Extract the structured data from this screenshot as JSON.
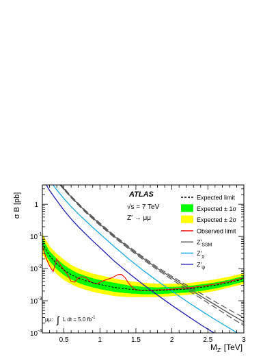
{
  "chart_data": {
    "type": "line",
    "title": "",
    "experiment": "ATLAS",
    "energy": "√s = 7 TeV",
    "process": "Z′ → μμ",
    "xlabel_main": "M",
    "xlabel_sub": "Z′",
    "xlabel_unit": "[TeV]",
    "ylabel": "σ B [pb]",
    "lumi_prefix": "μμ:",
    "lumi_text": "L dt = 5.0 fb",
    "lumi_exp": "-1",
    "xlim": [
      0.2,
      3.0
    ],
    "ylim_log10": [
      -4,
      0.6
    ],
    "yscale": "log",
    "x_ticks": [
      0.5,
      1,
      1.5,
      2,
      2.5,
      3
    ],
    "x_tick_labels": [
      "0.5",
      "1",
      "1.5",
      "2",
      "2.5",
      "3"
    ],
    "y_ticks": [
      {
        "exp": -4,
        "label": "10",
        "sup": "-4"
      },
      {
        "exp": -3,
        "label": "10",
        "sup": "-3"
      },
      {
        "exp": -2,
        "label": "10",
        "sup": "-2"
      },
      {
        "exp": -1,
        "label": "10",
        "sup": "-1"
      },
      {
        "exp": 0,
        "label": "1",
        "sup": ""
      }
    ],
    "legend": [
      {
        "key": "expected",
        "label": "Expected limit",
        "sub": "",
        "style": "dashed",
        "color": "#000000"
      },
      {
        "key": "band1",
        "label": "Expected ± 1σ",
        "sub": "",
        "style": "box",
        "color": "#00ff00"
      },
      {
        "key": "band2",
        "label": "Expected ± 2σ",
        "sub": "",
        "style": "box",
        "color": "#ffff00"
      },
      {
        "key": "observed",
        "label": "Observed limit",
        "sub": "",
        "style": "line",
        "color": "#ff0000"
      },
      {
        "key": "ssm",
        "label": "Z′",
        "sub": "SSM",
        "style": "line",
        "color": "#555555"
      },
      {
        "key": "chi",
        "label": "Z′",
        "sub": "χ",
        "style": "line",
        "color": "#19a9e0"
      },
      {
        "key": "psi",
        "label": "Z′",
        "sub": "ψ",
        "style": "line",
        "color": "#1c1cb0"
      }
    ],
    "series": [
      {
        "key": "expected",
        "x": [
          0.2,
          0.3,
          0.4,
          0.5,
          0.6,
          0.7,
          0.8,
          0.9,
          1.0,
          1.2,
          1.4,
          1.6,
          1.8,
          2.0,
          2.2,
          2.4,
          2.6,
          2.8,
          3.0
        ],
        "y": [
          0.06,
          0.025,
          0.014,
          0.009,
          0.0065,
          0.005,
          0.0042,
          0.0036,
          0.0032,
          0.0026,
          0.0023,
          0.0021,
          0.0021,
          0.0022,
          0.0023,
          0.0026,
          0.003,
          0.0037,
          0.0048
        ]
      },
      {
        "key": "band1",
        "x": [
          0.2,
          0.3,
          0.4,
          0.5,
          0.6,
          0.7,
          0.8,
          0.9,
          1.0,
          1.2,
          1.4,
          1.6,
          1.8,
          2.0,
          2.2,
          2.4,
          2.6,
          2.8,
          3.0
        ],
        "lo": [
          0.04,
          0.017,
          0.0095,
          0.0062,
          0.0046,
          0.0036,
          0.003,
          0.0026,
          0.0023,
          0.0019,
          0.0017,
          0.0016,
          0.0016,
          0.0017,
          0.0018,
          0.002,
          0.0024,
          0.003,
          0.0039
        ],
        "hi": [
          0.085,
          0.035,
          0.02,
          0.013,
          0.0092,
          0.0071,
          0.0059,
          0.005,
          0.0044,
          0.0036,
          0.003,
          0.0027,
          0.0026,
          0.0027,
          0.0028,
          0.0032,
          0.0037,
          0.0045,
          0.0059
        ]
      },
      {
        "key": "band2",
        "x": [
          0.2,
          0.3,
          0.4,
          0.5,
          0.6,
          0.7,
          0.8,
          0.9,
          1.0,
          1.2,
          1.4,
          1.6,
          1.8,
          2.0,
          2.2,
          2.4,
          2.6,
          2.8,
          3.0
        ],
        "lo": [
          0.028,
          0.012,
          0.0067,
          0.0044,
          0.0033,
          0.0026,
          0.0022,
          0.0019,
          0.0017,
          0.0014,
          0.0013,
          0.0013,
          0.0013,
          0.0014,
          0.0015,
          0.0017,
          0.002,
          0.0026,
          0.0033
        ],
        "hi": [
          0.12,
          0.05,
          0.029,
          0.019,
          0.013,
          0.0101,
          0.0083,
          0.007,
          0.0062,
          0.0049,
          0.0041,
          0.0036,
          0.0034,
          0.0034,
          0.0035,
          0.0039,
          0.0046,
          0.0056,
          0.0072
        ]
      },
      {
        "key": "observed",
        "x": [
          0.2,
          0.25,
          0.3,
          0.35,
          0.4,
          0.45,
          0.5,
          0.55,
          0.6,
          0.65,
          0.7,
          0.75,
          0.8,
          0.85,
          0.9,
          0.95,
          1.0,
          1.05,
          1.1,
          1.15,
          1.2,
          1.25,
          1.3,
          1.35,
          1.4,
          1.45,
          1.5,
          1.6,
          1.7,
          1.8,
          1.9,
          2.0,
          2.2,
          2.4,
          2.6,
          2.8,
          3.0
        ],
        "y": [
          0.05,
          0.022,
          0.012,
          0.008,
          0.02,
          0.013,
          0.009,
          0.0065,
          0.004,
          0.0038,
          0.0052,
          0.0056,
          0.0052,
          0.0042,
          0.0036,
          0.0034,
          0.0037,
          0.0042,
          0.0046,
          0.005,
          0.0057,
          0.0065,
          0.0066,
          0.0052,
          0.0035,
          0.0026,
          0.0022,
          0.0021,
          0.0021,
          0.0022,
          0.0022,
          0.0023,
          0.0025,
          0.0028,
          0.0033,
          0.004,
          0.0052
        ]
      },
      {
        "key": "ssm",
        "x": [
          0.2,
          0.3,
          0.4,
          0.5,
          0.6,
          0.7,
          0.8,
          0.9,
          1.0,
          1.2,
          1.4,
          1.6,
          1.8,
          2.0,
          2.2,
          2.4,
          2.6,
          2.8,
          3.0
        ],
        "y": [
          20,
          10,
          5.5,
          3.0,
          1.7,
          1.0,
          0.6,
          0.38,
          0.24,
          0.1,
          0.045,
          0.021,
          0.01,
          0.0052,
          0.0027,
          0.0014,
          0.00075,
          0.0004,
          0.00022
        ]
      },
      {
        "key": "ssm_up",
        "x": [
          0.2,
          0.3,
          0.4,
          0.5,
          0.6,
          0.7,
          0.8,
          0.9,
          1.0,
          1.2,
          1.4,
          1.6,
          1.8,
          2.0,
          2.2,
          2.4,
          2.6,
          2.8,
          3.0
        ],
        "y": [
          21,
          10.5,
          5.8,
          3.2,
          1.8,
          1.06,
          0.64,
          0.41,
          0.26,
          0.108,
          0.049,
          0.023,
          0.011,
          0.0058,
          0.0031,
          0.0017,
          0.00093,
          0.00052,
          0.0003
        ]
      },
      {
        "key": "ssm_dn",
        "x": [
          0.2,
          0.3,
          0.4,
          0.5,
          0.6,
          0.7,
          0.8,
          0.9,
          1.0,
          1.2,
          1.4,
          1.6,
          1.8,
          2.0,
          2.2,
          2.4,
          2.6,
          2.8,
          3.0
        ],
        "y": [
          19,
          9.5,
          5.2,
          2.85,
          1.6,
          0.94,
          0.56,
          0.35,
          0.22,
          0.092,
          0.041,
          0.019,
          0.0091,
          0.0046,
          0.0023,
          0.0012,
          0.00062,
          0.00032,
          0.00017
        ]
      },
      {
        "key": "chi",
        "x": [
          0.2,
          0.3,
          0.4,
          0.5,
          0.6,
          0.7,
          0.8,
          0.9,
          1.0,
          1.2,
          1.4,
          1.6,
          1.8,
          2.0,
          2.2,
          2.4,
          2.6,
          2.8,
          3.0
        ],
        "y": [
          12,
          5.5,
          2.8,
          1.5,
          0.85,
          0.5,
          0.31,
          0.19,
          0.12,
          0.048,
          0.02,
          0.0088,
          0.0041,
          0.002,
          0.00098,
          0.0005,
          0.00026,
          0.00014,
          7.5e-05
        ]
      },
      {
        "key": "psi",
        "x": [
          0.2,
          0.3,
          0.4,
          0.5,
          0.6,
          0.7,
          0.8,
          0.9,
          1.0,
          1.2,
          1.4,
          1.6,
          1.8,
          2.0,
          2.2,
          2.4,
          2.6,
          2.8,
          3.0
        ],
        "y": [
          6.5,
          2.7,
          1.3,
          0.65,
          0.35,
          0.2,
          0.12,
          0.072,
          0.045,
          0.017,
          0.0072,
          0.0032,
          0.0015,
          0.00072,
          0.00036,
          0.00018,
          9.5e-05,
          5e-05,
          2.8e-05
        ]
      }
    ]
  }
}
